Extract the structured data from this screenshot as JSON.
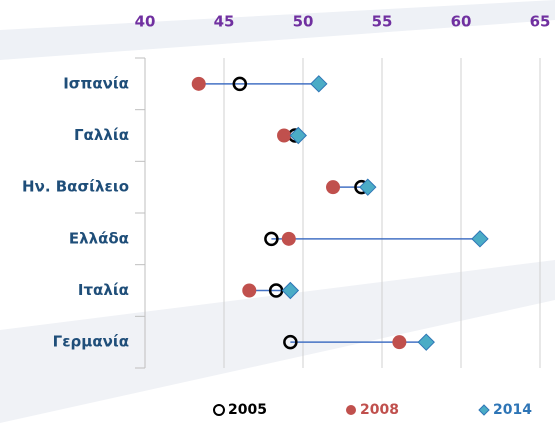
{
  "chart_data": {
    "type": "dot",
    "categories": [
      "Ισπανία",
      "Γαλλία",
      "Ην. Βασίλειο",
      "Ελλάδα",
      "Ιταλία",
      "Γερμανία"
    ],
    "series": [
      {
        "name": "2005",
        "color": "#000000",
        "marker": "circle",
        "values": [
          46.0,
          49.5,
          53.7,
          48.0,
          48.3,
          49.2
        ]
      },
      {
        "name": "2008",
        "color": "#c0504d",
        "marker": "dot",
        "values": [
          43.4,
          48.8,
          51.9,
          49.1,
          46.6,
          56.1
        ]
      },
      {
        "name": "2014",
        "color": "#4bacc6",
        "marker": "diamond",
        "values": [
          51.0,
          49.7,
          54.1,
          61.2,
          49.2,
          57.8
        ]
      }
    ],
    "xlim": [
      40,
      65
    ],
    "xticks": [
      40,
      45,
      50,
      55,
      60,
      65
    ],
    "grid": true,
    "line_color": "#4472c4"
  }
}
